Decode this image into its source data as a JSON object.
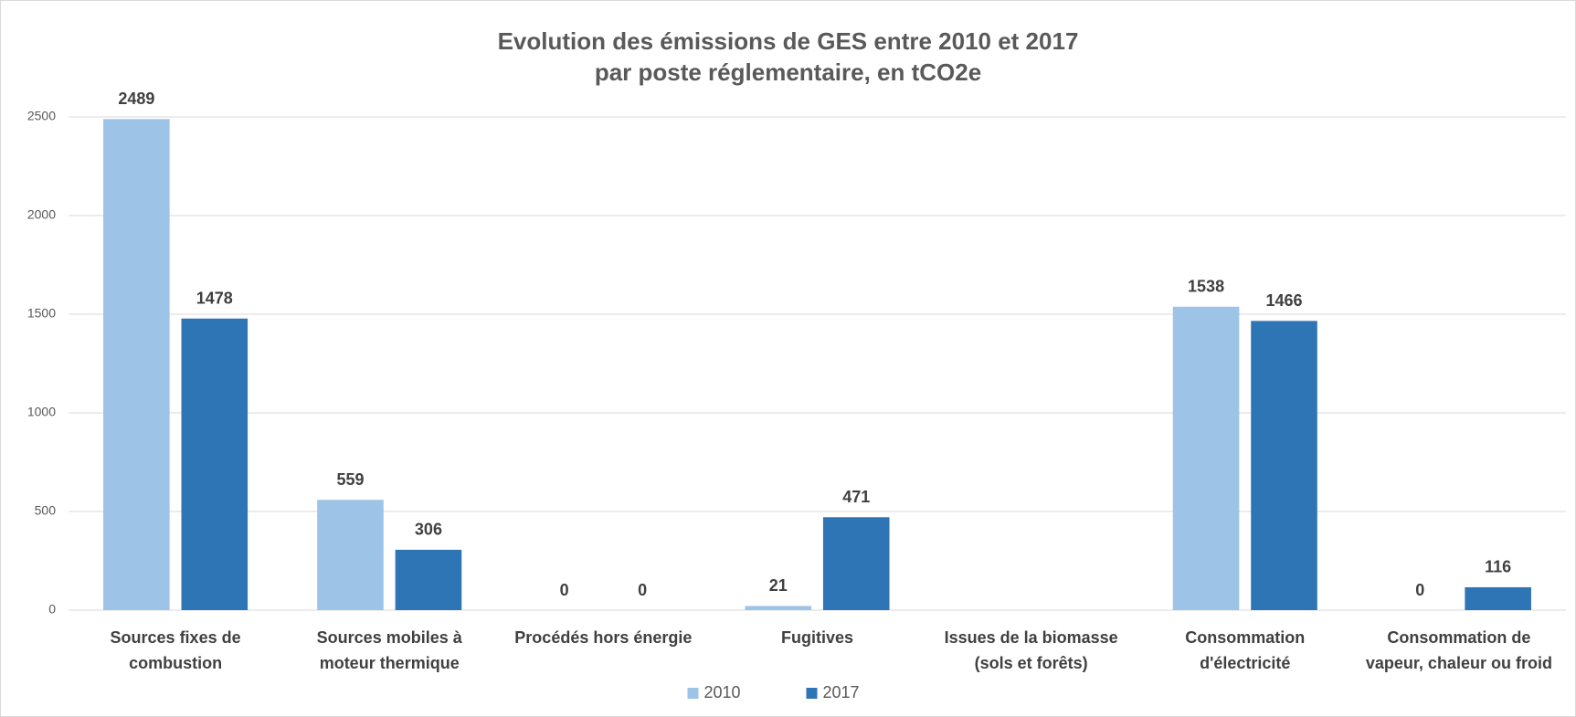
{
  "chart_data": {
    "type": "bar",
    "title": "Evolution des émissions de GES entre 2010 et 2017\npar poste réglementaire, en tCO2e",
    "categories": [
      "Sources fixes de\ncombustion",
      "Sources mobiles à\nmoteur thermique",
      "Procédés hors énergie",
      "Fugitives",
      "Issues de la biomasse\n(sols et forêts)",
      "Consommation\nd'électricité",
      "Consommation de\nvapeur, chaleur ou froid"
    ],
    "series": [
      {
        "name": "2010",
        "color": "#9dc3e6",
        "values": [
          2489,
          559,
          0,
          21,
          null,
          1538,
          0
        ]
      },
      {
        "name": "2017",
        "color": "#2e75b6",
        "values": [
          1478,
          306,
          0,
          471,
          null,
          1466,
          116
        ]
      }
    ],
    "ylim": [
      0,
      2500
    ],
    "yticks": [
      0,
      500,
      1000,
      1500,
      2000,
      2500
    ],
    "grid": true,
    "legend": "bottom"
  }
}
